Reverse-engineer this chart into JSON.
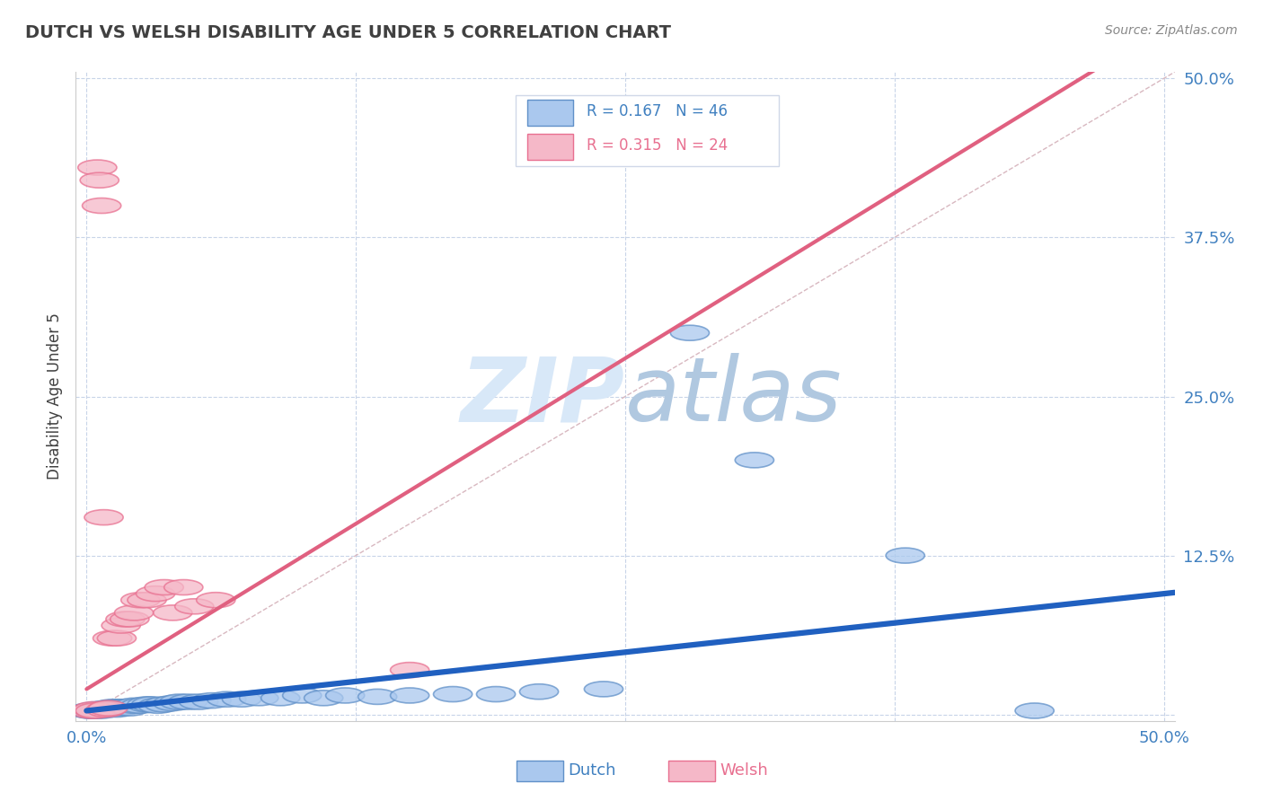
{
  "title": "DUTCH VS WELSH DISABILITY AGE UNDER 5 CORRELATION CHART",
  "source": "Source: ZipAtlas.com",
  "ylabel": "Disability Age Under 5",
  "xlabel": "",
  "xlim": [
    -0.005,
    0.505
  ],
  "ylim": [
    -0.005,
    0.505
  ],
  "xticks": [
    0.0,
    0.125,
    0.25,
    0.375,
    0.5
  ],
  "xtick_labels": [
    "0.0%",
    "",
    "",
    "",
    "50.0%"
  ],
  "yticks": [
    0.0,
    0.125,
    0.25,
    0.375,
    0.5
  ],
  "ytick_labels": [
    "",
    "12.5%",
    "25.0%",
    "37.5%",
    "50.0%"
  ],
  "dutch_color": "#aac8ee",
  "welsh_color": "#f5b8c8",
  "dutch_edge_color": "#6090c8",
  "welsh_edge_color": "#e87090",
  "trend_dutch_color": "#2060c0",
  "trend_welsh_color": "#e06080",
  "diagonal_color": "#d8b8c0",
  "title_color": "#404040",
  "axis_label_color": "#4080c0",
  "background_color": "#ffffff",
  "grid_color": "#c8d4e8",
  "watermark_color": "#d8e8f8",
  "dutch_x": [
    0.001,
    0.002,
    0.003,
    0.004,
    0.005,
    0.006,
    0.007,
    0.008,
    0.009,
    0.01,
    0.011,
    0.012,
    0.013,
    0.014,
    0.015,
    0.016,
    0.018,
    0.02,
    0.022,
    0.025,
    0.028,
    0.03,
    0.033,
    0.036,
    0.04,
    0.043,
    0.047,
    0.052,
    0.058,
    0.065,
    0.072,
    0.08,
    0.09,
    0.1,
    0.11,
    0.12,
    0.135,
    0.15,
    0.17,
    0.19,
    0.21,
    0.24,
    0.28,
    0.31,
    0.38,
    0.44
  ],
  "dutch_y": [
    0.003,
    0.003,
    0.003,
    0.004,
    0.003,
    0.004,
    0.003,
    0.004,
    0.005,
    0.004,
    0.005,
    0.006,
    0.005,
    0.004,
    0.006,
    0.005,
    0.006,
    0.005,
    0.007,
    0.007,
    0.008,
    0.008,
    0.007,
    0.008,
    0.009,
    0.01,
    0.01,
    0.01,
    0.011,
    0.012,
    0.012,
    0.013,
    0.013,
    0.015,
    0.013,
    0.015,
    0.014,
    0.015,
    0.016,
    0.016,
    0.018,
    0.02,
    0.3,
    0.2,
    0.125,
    0.003
  ],
  "welsh_x": [
    0.002,
    0.003,
    0.004,
    0.005,
    0.006,
    0.007,
    0.008,
    0.009,
    0.01,
    0.012,
    0.014,
    0.016,
    0.018,
    0.02,
    0.022,
    0.025,
    0.028,
    0.032,
    0.036,
    0.04,
    0.045,
    0.05,
    0.06,
    0.15
  ],
  "welsh_y": [
    0.003,
    0.004,
    0.003,
    0.43,
    0.42,
    0.4,
    0.155,
    0.004,
    0.005,
    0.06,
    0.06,
    0.07,
    0.075,
    0.075,
    0.08,
    0.09,
    0.09,
    0.095,
    0.1,
    0.08,
    0.1,
    0.085,
    0.09,
    0.035
  ],
  "dutch_trend_x0": 0.0,
  "dutch_trend_y0": 0.003,
  "dutch_trend_x1": 0.5,
  "dutch_trend_y1": 0.095,
  "welsh_trend_x0": 0.0,
  "welsh_trend_y0": 0.02,
  "welsh_trend_x1": 0.25,
  "welsh_trend_y1": 0.28
}
